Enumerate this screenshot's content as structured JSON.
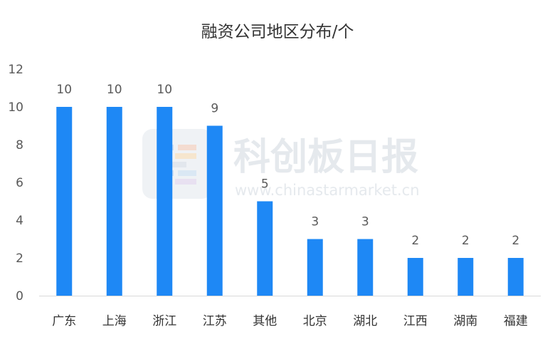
{
  "chart_data": {
    "type": "bar",
    "title": "融资公司地区分布/个",
    "categories": [
      "广东",
      "上海",
      "浙江",
      "江苏",
      "其他",
      "北京",
      "湖北",
      "江西",
      "湖南",
      "福建"
    ],
    "values": [
      10,
      10,
      10,
      9,
      5,
      3,
      3,
      2,
      2,
      2
    ],
    "ylim": [
      0,
      12
    ],
    "yticks": [
      "0",
      "2",
      "4",
      "6",
      "8",
      "10",
      "12"
    ],
    "grid": false,
    "bar_color": "#1e88f5",
    "data_labels": true
  },
  "watermark": {
    "brand": "科创板日报",
    "url": "www.chinastarmarket.cn"
  }
}
